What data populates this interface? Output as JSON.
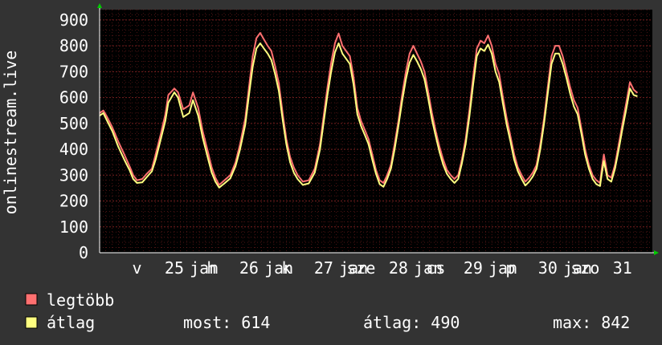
{
  "chart_data": {
    "type": "line",
    "ylabel": "onlinestream.live",
    "ylim": [
      0,
      940
    ],
    "yticks": [
      0,
      100,
      200,
      300,
      400,
      500,
      600,
      700,
      800,
      900
    ],
    "x_range_days": [
      24.0,
      31.4
    ],
    "x_tick_labels": [
      {
        "label": "v",
        "day": 24.5
      },
      {
        "label": "25",
        "day": 25.0
      },
      {
        "label": "jan",
        "day": 25.4
      },
      {
        "label": "h",
        "day": 25.5
      },
      {
        "label": "26",
        "day": 26.0
      },
      {
        "label": "jan",
        "day": 26.4
      },
      {
        "label": "k",
        "day": 26.5
      },
      {
        "label": "27",
        "day": 27.0
      },
      {
        "label": "jan",
        "day": 27.4
      },
      {
        "label": "sze",
        "day": 27.5
      },
      {
        "label": "28",
        "day": 28.0
      },
      {
        "label": "jan",
        "day": 28.4
      },
      {
        "label": "cs",
        "day": 28.5
      },
      {
        "label": "29",
        "day": 29.0
      },
      {
        "label": "jan",
        "day": 29.4
      },
      {
        "label": "p",
        "day": 29.5
      },
      {
        "label": "30",
        "day": 30.0
      },
      {
        "label": "jan",
        "day": 30.4
      },
      {
        "label": "szo",
        "day": 30.5
      },
      {
        "label": "31",
        "day": 31.0
      }
    ],
    "series": [
      {
        "name": "legtöbb",
        "color": "#ff7070",
        "points": [
          [
            24.0,
            540
          ],
          [
            24.05,
            550
          ],
          [
            24.1,
            525
          ],
          [
            24.17,
            485
          ],
          [
            24.25,
            430
          ],
          [
            24.33,
            380
          ],
          [
            24.4,
            335
          ],
          [
            24.45,
            300
          ],
          [
            24.5,
            280
          ],
          [
            24.57,
            285
          ],
          [
            24.63,
            305
          ],
          [
            24.7,
            325
          ],
          [
            24.75,
            380
          ],
          [
            24.82,
            460
          ],
          [
            24.88,
            535
          ],
          [
            24.92,
            610
          ],
          [
            25.0,
            635
          ],
          [
            25.05,
            620
          ],
          [
            25.12,
            555
          ],
          [
            25.2,
            570
          ],
          [
            25.25,
            620
          ],
          [
            25.32,
            560
          ],
          [
            25.38,
            470
          ],
          [
            25.45,
            390
          ],
          [
            25.5,
            330
          ],
          [
            25.55,
            290
          ],
          [
            25.6,
            262
          ],
          [
            25.67,
            280
          ],
          [
            25.75,
            300
          ],
          [
            25.82,
            350
          ],
          [
            25.88,
            420
          ],
          [
            25.95,
            520
          ],
          [
            26.0,
            640
          ],
          [
            26.05,
            760
          ],
          [
            26.1,
            830
          ],
          [
            26.15,
            850
          ],
          [
            26.2,
            825
          ],
          [
            26.25,
            800
          ],
          [
            26.3,
            780
          ],
          [
            26.35,
            720
          ],
          [
            26.4,
            655
          ],
          [
            26.45,
            540
          ],
          [
            26.5,
            440
          ],
          [
            26.55,
            370
          ],
          [
            26.6,
            330
          ],
          [
            26.65,
            300
          ],
          [
            26.72,
            275
          ],
          [
            26.8,
            280
          ],
          [
            26.88,
            325
          ],
          [
            26.95,
            420
          ],
          [
            27.0,
            530
          ],
          [
            27.05,
            640
          ],
          [
            27.1,
            735
          ],
          [
            27.15,
            810
          ],
          [
            27.2,
            848
          ],
          [
            27.25,
            800
          ],
          [
            27.3,
            780
          ],
          [
            27.35,
            760
          ],
          [
            27.4,
            680
          ],
          [
            27.45,
            560
          ],
          [
            27.5,
            510
          ],
          [
            27.55,
            475
          ],
          [
            27.6,
            440
          ],
          [
            27.65,
            380
          ],
          [
            27.7,
            320
          ],
          [
            27.75,
            280
          ],
          [
            27.8,
            270
          ],
          [
            27.85,
            300
          ],
          [
            27.9,
            340
          ],
          [
            27.95,
            420
          ],
          [
            28.0,
            510
          ],
          [
            28.05,
            610
          ],
          [
            28.1,
            700
          ],
          [
            28.15,
            770
          ],
          [
            28.2,
            800
          ],
          [
            28.25,
            770
          ],
          [
            28.3,
            740
          ],
          [
            28.35,
            700
          ],
          [
            28.4,
            620
          ],
          [
            28.45,
            540
          ],
          [
            28.5,
            470
          ],
          [
            28.55,
            410
          ],
          [
            28.6,
            360
          ],
          [
            28.65,
            320
          ],
          [
            28.7,
            300
          ],
          [
            28.75,
            285
          ],
          [
            28.8,
            300
          ],
          [
            28.85,
            360
          ],
          [
            28.9,
            440
          ],
          [
            28.95,
            550
          ],
          [
            29.0,
            680
          ],
          [
            29.05,
            790
          ],
          [
            29.1,
            820
          ],
          [
            29.15,
            810
          ],
          [
            29.2,
            840
          ],
          [
            29.25,
            800
          ],
          [
            29.3,
            730
          ],
          [
            29.35,
            690
          ],
          [
            29.4,
            600
          ],
          [
            29.45,
            520
          ],
          [
            29.5,
            450
          ],
          [
            29.55,
            380
          ],
          [
            29.6,
            330
          ],
          [
            29.65,
            300
          ],
          [
            29.7,
            275
          ],
          [
            29.75,
            290
          ],
          [
            29.8,
            310
          ],
          [
            29.85,
            340
          ],
          [
            29.9,
            420
          ],
          [
            29.95,
            520
          ],
          [
            30.0,
            640
          ],
          [
            30.05,
            760
          ],
          [
            30.1,
            800
          ],
          [
            30.15,
            800
          ],
          [
            30.2,
            760
          ],
          [
            30.25,
            700
          ],
          [
            30.3,
            640
          ],
          [
            30.35,
            590
          ],
          [
            30.4,
            560
          ],
          [
            30.45,
            480
          ],
          [
            30.5,
            400
          ],
          [
            30.55,
            340
          ],
          [
            30.6,
            300
          ],
          [
            30.65,
            280
          ],
          [
            30.7,
            270
          ],
          [
            30.72,
            320
          ],
          [
            30.75,
            380
          ],
          [
            30.8,
            300
          ],
          [
            30.85,
            290
          ],
          [
            30.9,
            340
          ],
          [
            30.95,
            420
          ],
          [
            31.0,
            500
          ],
          [
            31.05,
            580
          ],
          [
            31.1,
            660
          ],
          [
            31.15,
            630
          ],
          [
            31.2,
            618
          ]
        ]
      },
      {
        "name": "átlag",
        "color": "#ffff80",
        "points": [
          [
            24.0,
            530
          ],
          [
            24.05,
            540
          ],
          [
            24.1,
            510
          ],
          [
            24.17,
            470
          ],
          [
            24.25,
            410
          ],
          [
            24.33,
            360
          ],
          [
            24.4,
            320
          ],
          [
            24.45,
            285
          ],
          [
            24.5,
            270
          ],
          [
            24.57,
            272
          ],
          [
            24.63,
            292
          ],
          [
            24.7,
            315
          ],
          [
            24.75,
            360
          ],
          [
            24.82,
            440
          ],
          [
            24.88,
            510
          ],
          [
            24.92,
            580
          ],
          [
            25.0,
            620
          ],
          [
            25.05,
            600
          ],
          [
            25.12,
            525
          ],
          [
            25.2,
            540
          ],
          [
            25.25,
            590
          ],
          [
            25.32,
            530
          ],
          [
            25.38,
            445
          ],
          [
            25.45,
            365
          ],
          [
            25.5,
            310
          ],
          [
            25.55,
            275
          ],
          [
            25.6,
            252
          ],
          [
            25.67,
            268
          ],
          [
            25.75,
            288
          ],
          [
            25.82,
            335
          ],
          [
            25.88,
            400
          ],
          [
            25.95,
            495
          ],
          [
            26.0,
            610
          ],
          [
            26.05,
            720
          ],
          [
            26.1,
            790
          ],
          [
            26.15,
            810
          ],
          [
            26.2,
            790
          ],
          [
            26.25,
            770
          ],
          [
            26.3,
            745
          ],
          [
            26.35,
            690
          ],
          [
            26.4,
            625
          ],
          [
            26.45,
            515
          ],
          [
            26.5,
            420
          ],
          [
            26.55,
            350
          ],
          [
            26.6,
            310
          ],
          [
            26.65,
            285
          ],
          [
            26.72,
            262
          ],
          [
            26.8,
            268
          ],
          [
            26.88,
            310
          ],
          [
            26.95,
            400
          ],
          [
            27.0,
            505
          ],
          [
            27.05,
            610
          ],
          [
            27.1,
            700
          ],
          [
            27.15,
            775
          ],
          [
            27.2,
            810
          ],
          [
            27.25,
            770
          ],
          [
            27.3,
            750
          ],
          [
            27.35,
            730
          ],
          [
            27.4,
            650
          ],
          [
            27.45,
            535
          ],
          [
            27.5,
            490
          ],
          [
            27.55,
            455
          ],
          [
            27.6,
            420
          ],
          [
            27.65,
            360
          ],
          [
            27.7,
            305
          ],
          [
            27.75,
            265
          ],
          [
            27.8,
            255
          ],
          [
            27.85,
            285
          ],
          [
            27.9,
            325
          ],
          [
            27.95,
            400
          ],
          [
            28.0,
            490
          ],
          [
            28.05,
            585
          ],
          [
            28.1,
            670
          ],
          [
            28.15,
            735
          ],
          [
            28.2,
            765
          ],
          [
            28.25,
            740
          ],
          [
            28.3,
            710
          ],
          [
            28.35,
            670
          ],
          [
            28.4,
            595
          ],
          [
            28.45,
            515
          ],
          [
            28.5,
            450
          ],
          [
            28.55,
            390
          ],
          [
            28.6,
            340
          ],
          [
            28.65,
            305
          ],
          [
            28.7,
            285
          ],
          [
            28.75,
            270
          ],
          [
            28.8,
            285
          ],
          [
            28.85,
            345
          ],
          [
            28.9,
            420
          ],
          [
            28.95,
            525
          ],
          [
            29.0,
            650
          ],
          [
            29.05,
            760
          ],
          [
            29.1,
            790
          ],
          [
            29.15,
            780
          ],
          [
            29.2,
            805
          ],
          [
            29.25,
            770
          ],
          [
            29.3,
            700
          ],
          [
            29.35,
            660
          ],
          [
            29.4,
            575
          ],
          [
            29.45,
            495
          ],
          [
            29.5,
            430
          ],
          [
            29.55,
            360
          ],
          [
            29.6,
            315
          ],
          [
            29.65,
            285
          ],
          [
            29.7,
            260
          ],
          [
            29.75,
            275
          ],
          [
            29.8,
            295
          ],
          [
            29.85,
            325
          ],
          [
            29.9,
            400
          ],
          [
            29.95,
            500
          ],
          [
            30.0,
            615
          ],
          [
            30.05,
            730
          ],
          [
            30.1,
            770
          ],
          [
            30.15,
            770
          ],
          [
            30.2,
            730
          ],
          [
            30.25,
            675
          ],
          [
            30.3,
            615
          ],
          [
            30.35,
            565
          ],
          [
            30.4,
            535
          ],
          [
            30.45,
            460
          ],
          [
            30.5,
            380
          ],
          [
            30.55,
            325
          ],
          [
            30.6,
            285
          ],
          [
            30.65,
            265
          ],
          [
            30.7,
            258
          ],
          [
            30.72,
            300
          ],
          [
            30.75,
            355
          ],
          [
            30.8,
            285
          ],
          [
            30.85,
            275
          ],
          [
            30.9,
            325
          ],
          [
            30.95,
            400
          ],
          [
            31.0,
            480
          ],
          [
            31.05,
            555
          ],
          [
            31.1,
            635
          ],
          [
            31.15,
            610
          ],
          [
            31.2,
            605
          ]
        ]
      }
    ],
    "legend": {
      "placement": "bottom-left",
      "entries": [
        {
          "name": "legtöbb",
          "color": "#ff7070"
        },
        {
          "name": "átlag",
          "color": "#ffff80"
        }
      ]
    },
    "stats": {
      "most": "most: 614",
      "atlag": "átlag: 490",
      "max": "max: 842"
    },
    "grid": true,
    "colors": {
      "background": "#333333",
      "plot": "#000000",
      "grid": "#7a2020",
      "axis": "#ffffff",
      "arrow": "#00cc00"
    }
  }
}
